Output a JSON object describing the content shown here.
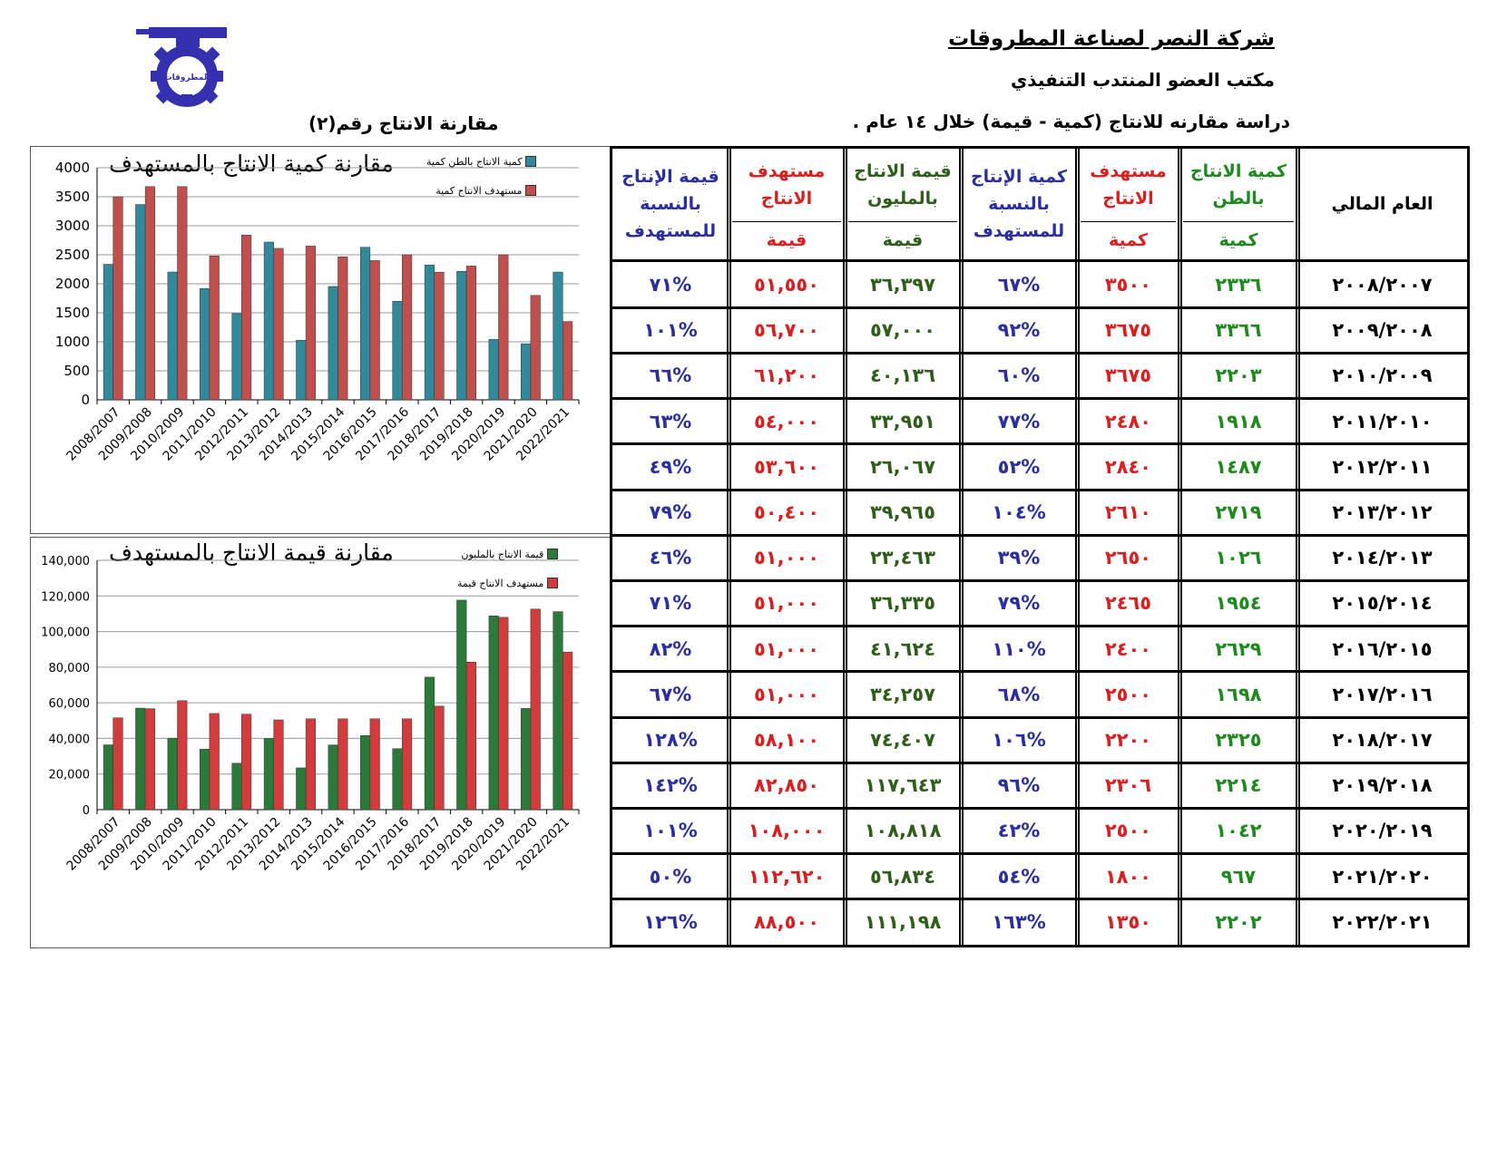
{
  "header": {
    "company": "شركة النصر لصناعة المطروقات",
    "office": "مكتب العضو المنتدب التنفيذي",
    "study": "دراسة مقارنه للانتاج (كمية - قيمة) خلال ١٤ عام .",
    "comparison_no": "مقارنة الانتاج رقم(٢)",
    "logo_text": "المطروقات"
  },
  "colors": {
    "green": "#1e8a1e",
    "red": "#d92020",
    "blue": "#2b2e9e",
    "olive": "#2f5e1a",
    "series_teal": "#31899a",
    "series_red": "#c0504d",
    "series_green": "#2b7a3a",
    "series_red2": "#d23c3c"
  },
  "table": {
    "headers": {
      "year": "العام المالي",
      "qty_actual": "كمية الانتاج بالطن",
      "qty_target": "مستهدف الانتاج",
      "qty_pct": "كمية الإنتاج بالنسبة للمستهدف",
      "val_actual": "قيمة الانتاج بالمليون",
      "val_target": "مستهدف الانتاج",
      "val_pct": "قيمة الإنتاج بالنسبة للمستهدف"
    },
    "subheaders": {
      "qty_actual": "كمية",
      "qty_target": "كمية",
      "val_actual": "قيمة",
      "val_target": "قيمة"
    },
    "rows": [
      {
        "year": "٢٠٠٨/٢٠٠٧",
        "qty": "٢٣٣٦",
        "qty_target": "٣٥٠٠",
        "qty_pct": "%٦٧",
        "val": "٣٦,٣٩٧",
        "val_target": "٥١,٥٥٠",
        "val_pct": "%٧١"
      },
      {
        "year": "٢٠٠٩/٢٠٠٨",
        "qty": "٣٣٦٦",
        "qty_target": "٣٦٧٥",
        "qty_pct": "%٩٢",
        "val": "٥٧,٠٠٠",
        "val_target": "٥٦,٧٠٠",
        "val_pct": "%١٠١"
      },
      {
        "year": "٢٠١٠/٢٠٠٩",
        "qty": "٢٢٠٣",
        "qty_target": "٣٦٧٥",
        "qty_pct": "%٦٠",
        "val": "٤٠,١٣٦",
        "val_target": "٦١,٢٠٠",
        "val_pct": "%٦٦"
      },
      {
        "year": "٢٠١١/٢٠١٠",
        "qty": "١٩١٨",
        "qty_target": "٢٤٨٠",
        "qty_pct": "%٧٧",
        "val": "٣٣,٩٥١",
        "val_target": "٥٤,٠٠٠",
        "val_pct": "%٦٣"
      },
      {
        "year": "٢٠١٢/٢٠١١",
        "qty": "١٤٨٧",
        "qty_target": "٢٨٤٠",
        "qty_pct": "%٥٢",
        "val": "٢٦,٠٦٧",
        "val_target": "٥٣,٦٠٠",
        "val_pct": "%٤٩"
      },
      {
        "year": "٢٠١٣/٢٠١٢",
        "qty": "٢٧١٩",
        "qty_target": "٢٦١٠",
        "qty_pct": "%١٠٤",
        "val": "٣٩,٩٦٥",
        "val_target": "٥٠,٤٠٠",
        "val_pct": "%٧٩"
      },
      {
        "year": "٢٠١٤/٢٠١٣",
        "qty": "١٠٢٦",
        "qty_target": "٢٦٥٠",
        "qty_pct": "%٣٩",
        "val": "٢٣,٤٦٣",
        "val_target": "٥١,٠٠٠",
        "val_pct": "%٤٦"
      },
      {
        "year": "٢٠١٥/٢٠١٤",
        "qty": "١٩٥٤",
        "qty_target": "٢٤٦٥",
        "qty_pct": "%٧٩",
        "val": "٣٦,٣٣٥",
        "val_target": "٥١,٠٠٠",
        "val_pct": "%٧١"
      },
      {
        "year": "٢٠١٦/٢٠١٥",
        "qty": "٢٦٢٩",
        "qty_target": "٢٤٠٠",
        "qty_pct": "%١١٠",
        "val": "٤١,٦٢٤",
        "val_target": "٥١,٠٠٠",
        "val_pct": "%٨٢"
      },
      {
        "year": "٢٠١٧/٢٠١٦",
        "qty": "١٦٩٨",
        "qty_target": "٢٥٠٠",
        "qty_pct": "%٦٨",
        "val": "٣٤,٢٥٧",
        "val_target": "٥١,٠٠٠",
        "val_pct": "%٦٧"
      },
      {
        "year": "٢٠١٨/٢٠١٧",
        "qty": "٢٣٢٥",
        "qty_target": "٢٢٠٠",
        "qty_pct": "%١٠٦",
        "val": "٧٤,٤٠٧",
        "val_target": "٥٨,١٠٠",
        "val_pct": "%١٢٨"
      },
      {
        "year": "٢٠١٩/٢٠١٨",
        "qty": "٢٢١٤",
        "qty_target": "٢٣٠٦",
        "qty_pct": "%٩٦",
        "val": "١١٧,٦٤٣",
        "val_target": "٨٢,٨٥٠",
        "val_pct": "%١٤٢"
      },
      {
        "year": "٢٠٢٠/٢٠١٩",
        "qty": "١٠٤٢",
        "qty_target": "٢٥٠٠",
        "qty_pct": "%٤٢",
        "val": "١٠٨,٨١٨",
        "val_target": "١٠٨,٠٠٠",
        "val_pct": "%١٠١"
      },
      {
        "year": "٢٠٢١/٢٠٢٠",
        "qty": "٩٦٧",
        "qty_target": "١٨٠٠",
        "qty_pct": "%٥٤",
        "val": "٥٦,٨٣٤",
        "val_target": "١١٢,٦٢٠",
        "val_pct": "%٥٠"
      },
      {
        "year": "٢٠٢٢/٢٠٢١",
        "qty": "٢٢٠٢",
        "qty_target": "١٣٥٠",
        "qty_pct": "%١٦٣",
        "val": "١١١,١٩٨",
        "val_target": "٨٨,٥٠٠",
        "val_pct": "%١٢٦"
      }
    ]
  },
  "chart_data": [
    {
      "type": "bar",
      "title": "مقارنة كمية الانتاج بالمستهدف",
      "categories": [
        "2008/2007",
        "2009/2008",
        "2010/2009",
        "2011/2010",
        "2012/2011",
        "2013/2012",
        "2014/2013",
        "2015/2014",
        "2016/2015",
        "2017/2016",
        "2018/2017",
        "2019/2018",
        "2020/2019",
        "2021/2020",
        "2022/2021"
      ],
      "series": [
        {
          "name": "كمية الانتاج بالطن كمية",
          "values": [
            2336,
            3366,
            2203,
            1918,
            1487,
            2719,
            1026,
            1954,
            2629,
            1698,
            2325,
            2214,
            1042,
            967,
            2202
          ]
        },
        {
          "name": "مستهدف الانتاج كمية",
          "values": [
            3500,
            3675,
            3675,
            2480,
            2840,
            2610,
            2650,
            2465,
            2400,
            2500,
            2200,
            2306,
            2500,
            1800,
            1350
          ]
        }
      ],
      "ylim": [
        0,
        4000
      ],
      "yticks": [
        0,
        500,
        1000,
        1500,
        2000,
        2500,
        3000,
        3500,
        4000
      ],
      "ytick_labels": [
        "0",
        "500",
        "1000",
        "1500",
        "2000",
        "2500",
        "3000",
        "3500",
        "4000"
      ],
      "grid": true,
      "legend": "top-right"
    },
    {
      "type": "bar",
      "title": "مقارنة قيمة الانتاج بالمستهدف",
      "categories": [
        "2008/2007",
        "2009/2008",
        "2010/2009",
        "2011/2010",
        "2012/2011",
        "2013/2012",
        "2014/2013",
        "2015/2014",
        "2016/2015",
        "2017/2016",
        "2018/2017",
        "2019/2018",
        "2020/2019",
        "2021/2020",
        "2022/2021"
      ],
      "series": [
        {
          "name": "قيمة الانتاج بالمليون",
          "values": [
            36397,
            57000,
            40136,
            33951,
            26067,
            39965,
            23463,
            36335,
            41624,
            34257,
            74407,
            117643,
            108818,
            56834,
            111198
          ]
        },
        {
          "name": "مستهدف الانتاج قيمة",
          "values": [
            51550,
            56700,
            61200,
            54000,
            53600,
            50400,
            51000,
            51000,
            51000,
            51000,
            58100,
            82850,
            108000,
            112620,
            88500
          ]
        }
      ],
      "ylim": [
        0,
        140000
      ],
      "yticks": [
        0,
        20000,
        40000,
        60000,
        80000,
        100000,
        120000,
        140000
      ],
      "ytick_labels": [
        "0",
        "20,000",
        "40,000",
        "60,000",
        "80,000",
        "100,000",
        "120,000",
        "140,000"
      ],
      "grid": true,
      "legend": "top-right"
    }
  ]
}
